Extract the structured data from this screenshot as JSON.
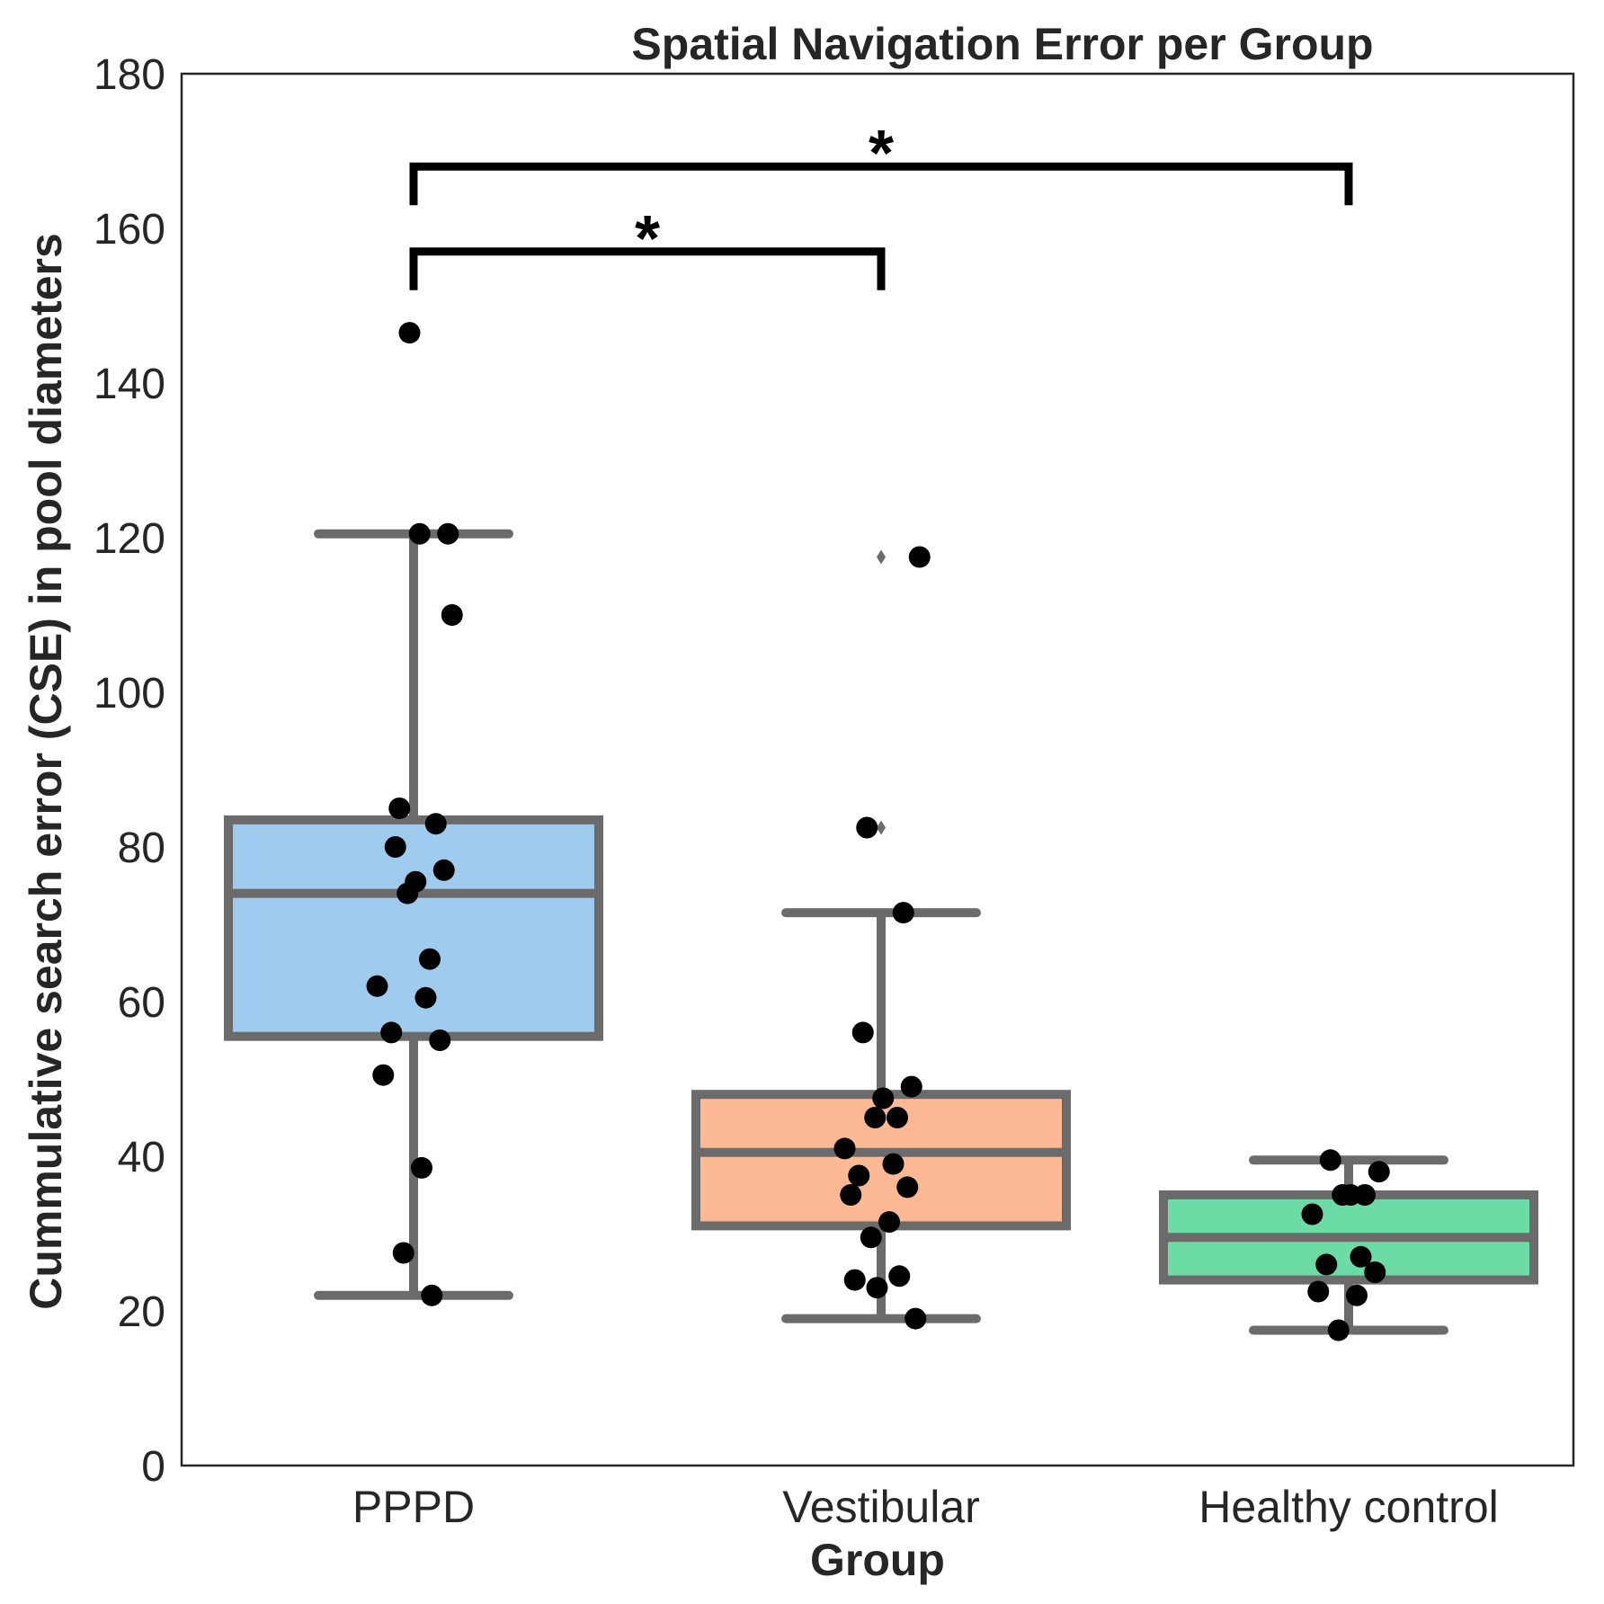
{
  "chart_data": {
    "type": "box",
    "title": "Spatial Navigation Error per Group",
    "xlabel": "Group",
    "ylabel": "Cummulative search error (CSE) in pool diameters",
    "ylim": [
      0,
      180
    ],
    "yticks": [
      0,
      20,
      40,
      60,
      80,
      100,
      120,
      140,
      160,
      180
    ],
    "grid": false,
    "categories": [
      "PPPD",
      "Vestibular",
      "Healthy control"
    ],
    "colors": {
      "box_edge": "#6b6b6b",
      "points": "#000000",
      "bracket": "#000000"
    },
    "boxes": [
      {
        "name": "PPPD",
        "fill": "#9fcbee",
        "whisker_low": 22,
        "q1": 55.5,
        "median": 74,
        "q3": 83.5,
        "whisker_high": 120.5,
        "outliers": [
          146.5
        ],
        "points": [
          146.5,
          120.5,
          120.5,
          110,
          85,
          83,
          80,
          77,
          75.5,
          74,
          65.5,
          62,
          60.5,
          56,
          55,
          50.5,
          38.5,
          27.5,
          22
        ]
      },
      {
        "name": "Vestibular",
        "fill": "#fdb894",
        "whisker_low": 19,
        "q1": 31,
        "median": 40.5,
        "q3": 48,
        "whisker_high": 71.5,
        "outliers": [
          117.5,
          82.5
        ],
        "points": [
          117.5,
          82.5,
          71.5,
          56,
          49,
          47.5,
          45,
          45,
          41,
          39,
          37.5,
          36,
          35,
          31.5,
          29.5,
          24.5,
          24,
          23,
          19
        ]
      },
      {
        "name": "Healthy control",
        "fill": "#6ddba6",
        "whisker_low": 17.5,
        "q1": 24,
        "median": 29.5,
        "q3": 35,
        "whisker_high": 39.5,
        "outliers": [],
        "points": [
          39.5,
          38,
          35,
          35,
          35,
          32.5,
          27,
          26,
          25,
          22.5,
          22,
          17.5
        ]
      }
    ],
    "annotations": [
      {
        "from": "PPPD",
        "to": "Vestibular",
        "label": "*",
        "y": 157,
        "tick_bottom": 152
      },
      {
        "from": "PPPD",
        "to": "Healthy control",
        "label": "*",
        "y": 168,
        "tick_bottom": 163
      }
    ]
  }
}
